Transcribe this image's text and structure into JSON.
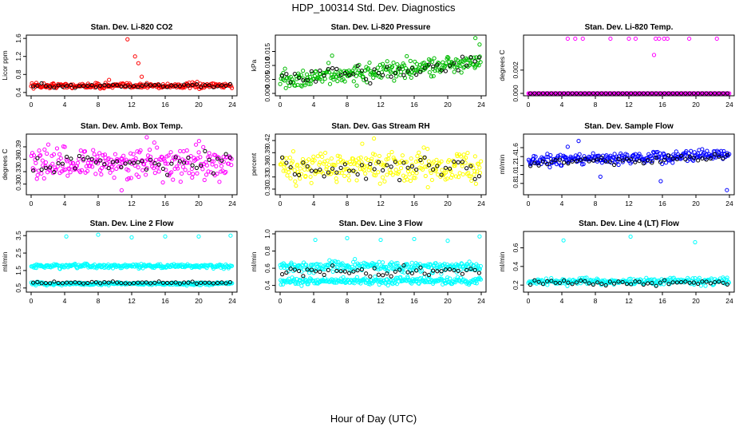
{
  "figure": {
    "title": "HDP_100314  Std. Dev. Diagnostics",
    "xlabel": "Hour of Day (UTC)"
  },
  "chart_data": [
    {
      "type": "scatter",
      "title": "Stan. Dev. Li-820 CO2",
      "ylabel": "Licor ppm",
      "color": "#ff0000",
      "xlim": [
        0,
        24
      ],
      "ylim": [
        0.38,
        1.62
      ],
      "yticks": [
        "0.4",
        "0.8",
        "1.2",
        "1.6"
      ],
      "ytick_values": [
        0.4,
        0.8,
        1.2,
        1.6
      ],
      "xticks": [
        "0",
        "4",
        "8",
        "12",
        "16",
        "20",
        "24"
      ],
      "series": [
        {
          "name": "points",
          "base": 0.55,
          "spread": 0.06,
          "trend": 0.0
        },
        {
          "name": "hourly",
          "color": "#000000",
          "base": 0.55,
          "spread": 0.04
        }
      ],
      "outliers": [
        [
          11.5,
          1.58
        ],
        [
          12.4,
          1.2
        ],
        [
          12.8,
          1.05
        ],
        [
          13.2,
          0.75
        ],
        [
          9.3,
          0.68
        ]
      ]
    },
    {
      "type": "scatter",
      "title": "Stan. Dev. Li-820 Pressure",
      "ylabel": "kPa",
      "color": "#00bb00",
      "xlim": [
        0,
        24
      ],
      "ylim": [
        0,
        0.02
      ],
      "yticks": [
        "0.000",
        "0.005",
        "0.010",
        "0.015"
      ],
      "ytick_values": [
        0,
        0.005,
        0.01,
        0.015
      ],
      "xticks": [
        "0",
        "4",
        "8",
        "12",
        "16",
        "20",
        "24"
      ],
      "series": [
        {
          "name": "points",
          "base": 0.0045,
          "spread": 0.0035,
          "trend": 0.00028
        },
        {
          "name": "hourly",
          "color": "#000000",
          "base": 0.0045,
          "spread": 0.003
        }
      ],
      "outliers": [
        [
          23.3,
          0.0198
        ],
        [
          23.8,
          0.0175
        ],
        [
          6.2,
          0.0135
        ]
      ]
    },
    {
      "type": "scatter",
      "title": "Stan. Dev. Li-820 Temp.",
      "ylabel": "degrees C",
      "color": "#ff00ff",
      "xlim": [
        0,
        24
      ],
      "ylim": [
        0,
        0.0048
      ],
      "yticks": [
        "0.000",
        "0.002"
      ],
      "ytick_values": [
        0,
        0.002
      ],
      "xticks": [
        "0",
        "4",
        "8",
        "12",
        "16",
        "20",
        "24"
      ],
      "series": [
        {
          "name": "points",
          "base": 0.0,
          "spread": 0.0,
          "trend": 0.0
        },
        {
          "name": "hourly",
          "color": "#000000",
          "base": 0.0,
          "spread": 0.0
        }
      ],
      "outliers": [
        [
          4.7,
          0.0047
        ],
        [
          5.6,
          0.0047
        ],
        [
          6.5,
          0.0047
        ],
        [
          9.8,
          0.0047
        ],
        [
          12.0,
          0.0047
        ],
        [
          12.8,
          0.0047
        ],
        [
          15.2,
          0.0047
        ],
        [
          15.6,
          0.0047
        ],
        [
          16.2,
          0.0047
        ],
        [
          16.6,
          0.0047
        ],
        [
          19.2,
          0.0047
        ],
        [
          22.5,
          0.0047
        ],
        [
          15.0,
          0.0033
        ]
      ]
    },
    {
      "type": "scatter",
      "title": "Stan. Dev. Amb. Box Temp.",
      "ylabel": "degrees C",
      "color": "#ff00ff",
      "xlim": [
        0,
        24
      ],
      "ylim": [
        0.28,
        0.415
      ],
      "yticks": [
        "0.30",
        "0.33",
        "0.36",
        "0.39"
      ],
      "ytick_values": [
        0.3,
        0.33,
        0.36,
        0.39
      ],
      "xticks": [
        "0",
        "4",
        "8",
        "12",
        "16",
        "20",
        "24"
      ],
      "series": [
        {
          "name": "points",
          "base": 0.35,
          "spread": 0.035,
          "trend": 0.0
        },
        {
          "name": "hourly",
          "color": "#000000",
          "base": 0.352,
          "spread": 0.025
        }
      ],
      "outliers": [
        [
          13.8,
          0.413
        ],
        [
          10.8,
          0.285
        ]
      ]
    },
    {
      "type": "scatter",
      "title": "Stan. Dev. Gas Stream RH",
      "ylabel": "percent",
      "color": "#ffff00",
      "xlim": [
        0,
        24
      ],
      "ylim": [
        0.292,
        0.43
      ],
      "yticks": [
        "0.30",
        "0.33",
        "0.36",
        "0.39",
        "0.42"
      ],
      "ytick_values": [
        0.3,
        0.33,
        0.36,
        0.39,
        0.42
      ],
      "xticks": [
        "0",
        "4",
        "8",
        "12",
        "16",
        "20",
        "24"
      ],
      "series": [
        {
          "name": "points",
          "base": 0.355,
          "spread": 0.035,
          "trend": 0.0
        },
        {
          "name": "hourly",
          "color": "#000000",
          "base": 0.352,
          "spread": 0.025
        }
      ],
      "outliers": [
        [
          11.2,
          0.425
        ],
        [
          9.8,
          0.412
        ]
      ]
    },
    {
      "type": "scatter",
      "title": "Stan. Dev. Sample Flow",
      "ylabel": "ml/min",
      "color": "#0000ff",
      "xlim": [
        0,
        24
      ],
      "ylim": [
        0.6,
        1.85
      ],
      "yticks": [
        "0.8",
        "1.0",
        "1.2",
        "1.4",
        "1.6"
      ],
      "ytick_values": [
        0.8,
        1.0,
        1.2,
        1.4,
        1.6
      ],
      "xticks": [
        "0",
        "4",
        "8",
        "12",
        "16",
        "20",
        "24"
      ],
      "series": [
        {
          "name": "points",
          "base": 1.3,
          "spread": 0.12,
          "trend": 0.006
        },
        {
          "name": "hourly",
          "color": "#000000",
          "base": 1.25,
          "spread": 0.08
        }
      ],
      "outliers": [
        [
          6.0,
          1.75
        ],
        [
          8.6,
          0.95
        ],
        [
          15.8,
          0.85
        ],
        [
          23.7,
          0.65
        ],
        [
          4.7,
          1.62
        ]
      ]
    },
    {
      "type": "scatter",
      "title": "Stan. Dev. Line 2 Flow",
      "ylabel": "ml/min",
      "color": "#00ffff",
      "xlim": [
        0,
        24
      ],
      "ylim": [
        0.4,
        3.6
      ],
      "yticks": [
        "0.5",
        "1.5",
        "2.5",
        "3.5"
      ],
      "ytick_values": [
        0.5,
        1.5,
        2.5,
        3.5
      ],
      "xticks": [
        "0",
        "4",
        "8",
        "12",
        "16",
        "20",
        "24"
      ],
      "series": [
        {
          "name": "band-high",
          "base": 1.75,
          "spread": 0.12,
          "trend": 0.0
        },
        {
          "name": "band-low",
          "base": 0.75,
          "spread": 0.08,
          "trend": 0.0
        },
        {
          "name": "hourly",
          "color": "#000000",
          "base": 0.8,
          "spread": 0.06
        }
      ],
      "outliers": [
        [
          4.2,
          3.45
        ],
        [
          8.0,
          3.55
        ],
        [
          12.0,
          3.4
        ],
        [
          16.0,
          3.45
        ],
        [
          20.0,
          3.45
        ],
        [
          23.8,
          3.5
        ]
      ]
    },
    {
      "type": "scatter",
      "title": "Stan. Dev. Line 3 Flow",
      "ylabel": "ml/min",
      "color": "#00ffff",
      "xlim": [
        0,
        24
      ],
      "ylim": [
        0.35,
        1.0
      ],
      "yticks": [
        "0.4",
        "0.6",
        "0.8",
        "1.0"
      ],
      "ytick_values": [
        0.4,
        0.6,
        0.8,
        1.0
      ],
      "xticks": [
        "0",
        "4",
        "8",
        "12",
        "16",
        "20",
        "24"
      ],
      "series": [
        {
          "name": "band-high",
          "base": 0.62,
          "spread": 0.06,
          "trend": 0.0
        },
        {
          "name": "band-low",
          "base": 0.45,
          "spread": 0.04,
          "trend": 0.0
        },
        {
          "name": "hourly",
          "color": "#000000",
          "base": 0.56,
          "spread": 0.06
        }
      ],
      "outliers": [
        [
          4.2,
          0.93
        ],
        [
          8.0,
          0.95
        ],
        [
          12.0,
          0.93
        ],
        [
          16.0,
          0.94
        ],
        [
          20.0,
          0.92
        ],
        [
          23.8,
          0.97
        ]
      ]
    },
    {
      "type": "scatter",
      "title": "Stan. Dev. Line 4 (LT) Flow",
      "ylabel": "ml/min",
      "color": "#00ffff",
      "xlim": [
        0,
        24
      ],
      "ylim": [
        0.15,
        0.75
      ],
      "yticks": [
        "0.2",
        "0.4",
        "0.6"
      ],
      "ytick_values": [
        0.2,
        0.4,
        0.6
      ],
      "xticks": [
        "0",
        "4",
        "8",
        "12",
        "16",
        "20",
        "24"
      ],
      "series": [
        {
          "name": "points",
          "base": 0.24,
          "spread": 0.035,
          "trend": 0.0
        },
        {
          "name": "hourly",
          "color": "#000000",
          "base": 0.23,
          "spread": 0.03
        }
      ],
      "outliers": [
        [
          4.2,
          0.68
        ],
        [
          12.2,
          0.72
        ],
        [
          19.9,
          0.66
        ]
      ]
    }
  ]
}
